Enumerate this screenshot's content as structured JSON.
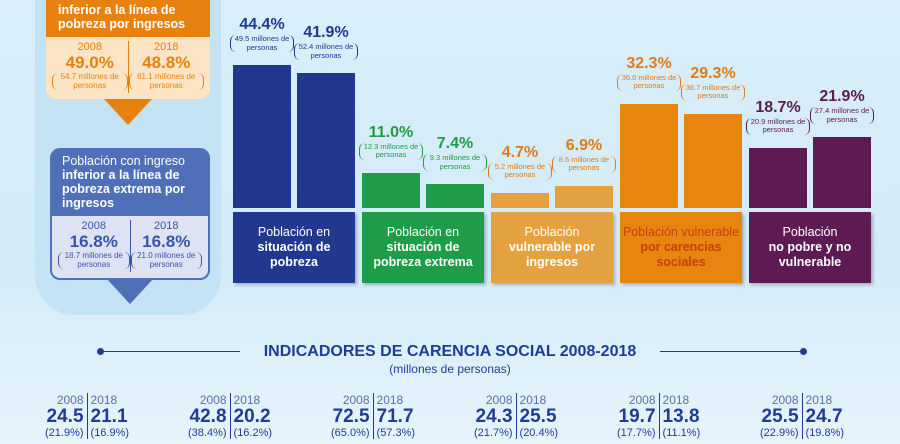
{
  "left_panel": {
    "income_poverty": {
      "title_bold": "inferior a la línea de pobreza por ingresos",
      "years": [
        {
          "year": "2008",
          "pct": "49.0%",
          "people": "54.7 millones de personas"
        },
        {
          "year": "2018",
          "pct": "48.8%",
          "people": "61.1 millones de personas"
        }
      ],
      "color": "#e8820f"
    },
    "extreme_income_poverty": {
      "title_light": "Población con ingreso",
      "title_bold": "inferior a la línea de pobreza extrema por ingresos",
      "years": [
        {
          "year": "2008",
          "pct": "16.8%",
          "people": "18.7 millones de personas"
        },
        {
          "year": "2018",
          "pct": "16.8%",
          "people": "21.0 millones de personas"
        }
      ],
      "color": "#4f6fb8"
    }
  },
  "chart_data": {
    "type": "bar",
    "groups": [
      {
        "light": "Población en",
        "bold": "situación de pobreza",
        "color": "#22388f",
        "values": [
          44.4,
          41.9
        ],
        "labels": [
          "44.4%",
          "41.9%"
        ],
        "people": [
          "49.5 millones de personas",
          "52.4 millones de personas"
        ]
      },
      {
        "light": "Población en",
        "bold": "situación de pobreza extrema",
        "color": "#1e9c47",
        "values": [
          11.0,
          7.4
        ],
        "labels": [
          "11.0%",
          "7.4%"
        ],
        "people": [
          "12.3 millones de personas",
          "9.3 millones de personas"
        ]
      },
      {
        "light": "Población",
        "bold": "vulnerable por ingresos",
        "color": "#e3a23f",
        "textcolor": "#e07a1a",
        "values": [
          4.7,
          6.9
        ],
        "labels": [
          "4.7%",
          "6.9%"
        ],
        "people": [
          "5.2 millones de personas",
          "8.6 millones de personas"
        ]
      },
      {
        "light": "Población vulnerable",
        "bold": "por carencias sociales",
        "color": "#e8850f",
        "textcolor": "#e07a1a",
        "values": [
          32.3,
          29.3
        ],
        "labels": [
          "32.3%",
          "29.3%"
        ],
        "people": [
          "36.0 millones de personas",
          "36.7 millones de personas"
        ]
      },
      {
        "light": "Población",
        "bold": "no pobre y no vulnerable",
        "color": "#5e1a52",
        "values": [
          18.7,
          21.9
        ],
        "labels": [
          "18.7%",
          "21.9%"
        ],
        "people": [
          "20.9 millones de personas",
          "27.4 millones de personas"
        ]
      }
    ]
  },
  "indicators": {
    "title": "INDICADORES DE CARENCIA SOCIAL 2008-2018",
    "subtitle": "(millones de personas)",
    "years": [
      "2008",
      "2018"
    ],
    "items": [
      {
        "v2008": "24.5",
        "p2008": "(21.9%)",
        "v2018": "21.1",
        "p2018": "(16.9%)"
      },
      {
        "v2008": "42.8",
        "p2008": "(38.4%)",
        "v2018": "20.2",
        "p2018": "(16.2%)"
      },
      {
        "v2008": "72.5",
        "p2008": "(65.0%)",
        "v2018": "71.7",
        "p2018": "(57.3%)"
      },
      {
        "v2008": "24.3",
        "p2008": "(21.7%)",
        "v2018": "25.5",
        "p2018": "(20.4%)"
      },
      {
        "v2008": "19.7",
        "p2008": "(17.7%)",
        "v2018": "13.8",
        "p2018": "(11.1%)"
      },
      {
        "v2008": "25.5",
        "p2008": "(22.9%)",
        "v2018": "24.7",
        "p2018": "(19.8%)"
      }
    ]
  }
}
